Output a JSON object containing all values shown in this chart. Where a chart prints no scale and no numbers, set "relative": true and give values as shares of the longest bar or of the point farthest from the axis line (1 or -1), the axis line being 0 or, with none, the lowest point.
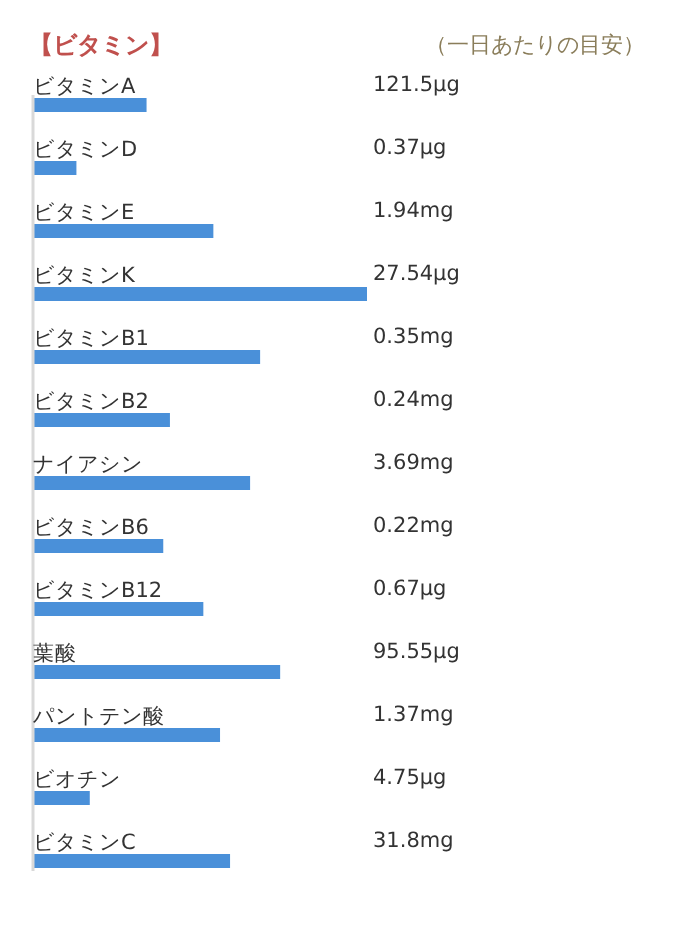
{
  "chart_data": {
    "type": "bar",
    "orientation": "horizontal",
    "relative": true,
    "title": "【ビタミン】",
    "categories": [
      "ビタミンA",
      "ビタミンD",
      "ビタミンE",
      "ビタミンK",
      "ビタミンB1",
      "ビタミンB2",
      "ナイアシン",
      "ビタミンB6",
      "ビタミンB12",
      "葉酸",
      "パントテン酸",
      "ビオチン",
      "ビタミンC"
    ],
    "values": [
      0.34,
      0.13,
      0.54,
      1,
      0.68,
      0.41,
      0.65,
      0.39,
      0.51,
      0.74,
      0.56,
      0.17,
      0.59
    ],
    "annotations": [
      "（一日あたりの目安）",
      "121.5μg",
      "0.37μg",
      "1.94mg",
      "27.54μg",
      "0.35mg",
      "0.24mg",
      "3.69mg",
      "0.22mg",
      "0.67μg",
      "95.55μg",
      "1.37mg",
      "4.75μg",
      "31.8mg"
    ],
    "color": "#4a90d9"
  }
}
